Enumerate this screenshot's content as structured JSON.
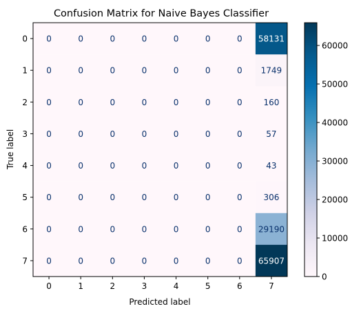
{
  "chart_data": {
    "type": "heatmap",
    "title": "Confusion Matrix for Naive Bayes Classifier",
    "xlabel": "Predicted label",
    "ylabel": "True label",
    "x_tick_labels": [
      "0",
      "1",
      "2",
      "3",
      "4",
      "5",
      "6",
      "7"
    ],
    "y_tick_labels": [
      "0",
      "1",
      "2",
      "3",
      "4",
      "5",
      "6",
      "7"
    ],
    "values": [
      [
        0,
        0,
        0,
        0,
        0,
        0,
        0,
        58131
      ],
      [
        0,
        0,
        0,
        0,
        0,
        0,
        0,
        1749
      ],
      [
        0,
        0,
        0,
        0,
        0,
        0,
        0,
        160
      ],
      [
        0,
        0,
        0,
        0,
        0,
        0,
        0,
        57
      ],
      [
        0,
        0,
        0,
        0,
        0,
        0,
        0,
        43
      ],
      [
        0,
        0,
        0,
        0,
        0,
        0,
        0,
        306
      ],
      [
        0,
        0,
        0,
        0,
        0,
        0,
        0,
        29190
      ],
      [
        0,
        0,
        0,
        0,
        0,
        0,
        0,
        65907
      ]
    ],
    "colormap": "PuBu",
    "colorbar": {
      "range": [
        0,
        65907
      ],
      "ticks": [
        0,
        10000,
        20000,
        30000,
        40000,
        50000,
        60000
      ],
      "tick_labels": [
        "0",
        "10000",
        "20000",
        "30000",
        "40000",
        "50000",
        "60000"
      ]
    },
    "text_colors": {
      "low": "#08306b",
      "high": "#ffffff"
    }
  }
}
